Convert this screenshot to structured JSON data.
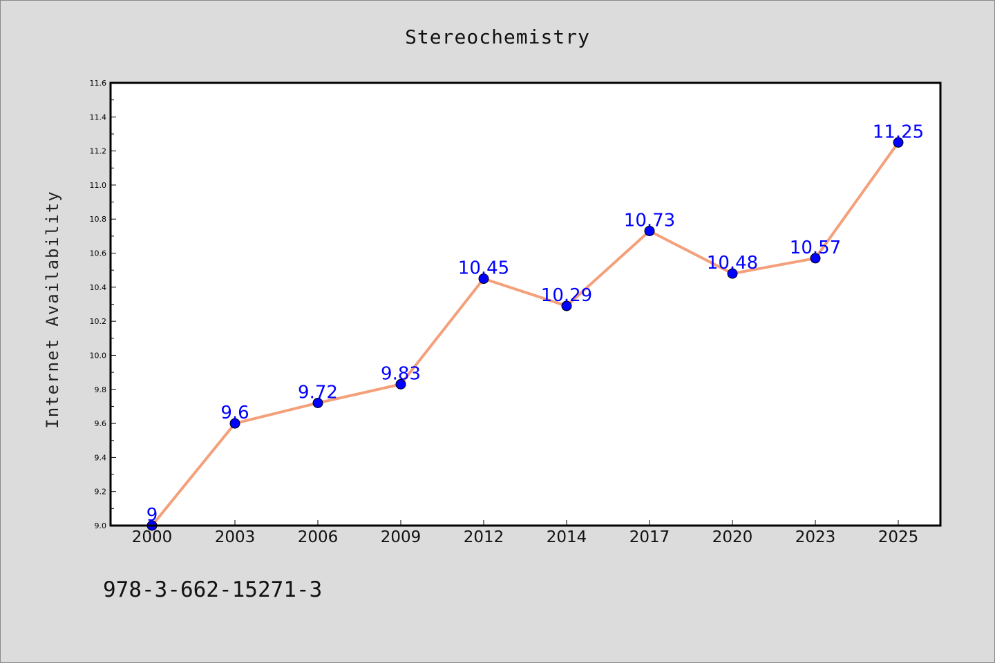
{
  "chart_data": {
    "type": "line",
    "title": "Stereochemistry",
    "xlabel": "",
    "ylabel": "Internet Availability",
    "categories": [
      "2000",
      "2003",
      "2006",
      "2009",
      "2012",
      "2014",
      "2017",
      "2020",
      "2023",
      "2025"
    ],
    "series": [
      {
        "values": [
          9.0,
          9.6,
          9.72,
          9.83,
          10.45,
          10.29,
          10.73,
          10.48,
          10.57,
          11.25
        ],
        "data_labels": [
          "9",
          "9.6",
          "9.72",
          "9.83",
          "10.45",
          "10.29",
          "10.73",
          "10.48",
          "10.57",
          "11.25"
        ],
        "line_color": "#f4a07a",
        "marker_color": "#0000ff"
      }
    ],
    "ylim": [
      9.0,
      11.6
    ],
    "yticks": [
      "9.0",
      "9.2",
      "9.4",
      "9.6",
      "9.8",
      "10.0",
      "10.2",
      "10.4",
      "10.6",
      "10.8",
      "11.0",
      "11.2",
      "11.4",
      "11.6"
    ],
    "grid": false,
    "legend": "none",
    "plot_background": "#ffffff",
    "page_background": "#dcdcdc"
  },
  "footnote": "978-3-662-15271-3"
}
